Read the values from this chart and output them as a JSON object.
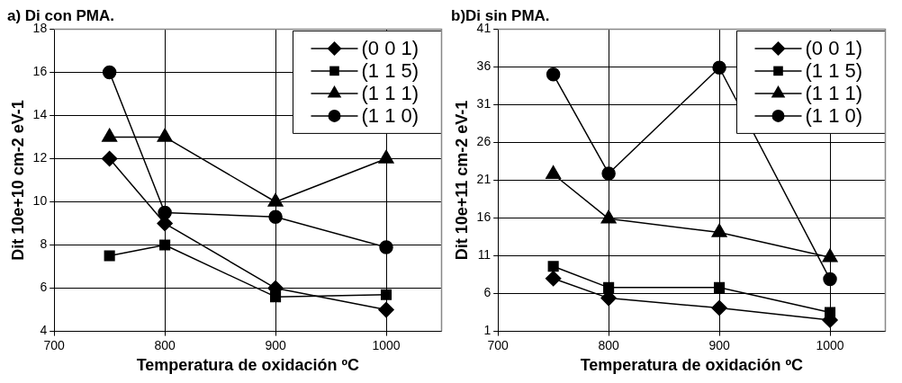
{
  "chart_data": [
    {
      "type": "line",
      "title": "a) Di con PMA.",
      "xlabel": "Temperatura de oxidación ºC",
      "ylabel": "Dit 10e+10 cm-2 eV-1",
      "x": [
        750,
        800,
        900,
        1000
      ],
      "xlim": [
        700,
        1050
      ],
      "xticks": [
        700,
        800,
        900,
        1000
      ],
      "ylim": [
        4,
        18
      ],
      "yticks": [
        4,
        6,
        8,
        10,
        12,
        14,
        16,
        18
      ],
      "grid": true,
      "legend": "top right",
      "line_style": "solid",
      "series": [
        {
          "name": "(0 0 1)",
          "color": "#000000",
          "marker": "diamond",
          "values": [
            12,
            9,
            6,
            5
          ]
        },
        {
          "name": "(1 1 5)",
          "color": "#000000",
          "marker": "square",
          "values": [
            7.5,
            8,
            5.6,
            5.7
          ]
        },
        {
          "name": "(1 1 1)",
          "color": "#000000",
          "marker": "triangle",
          "values": [
            13,
            13,
            10,
            12
          ]
        },
        {
          "name": "(1 1 0)",
          "color": "#000000",
          "marker": "circle",
          "values": [
            16,
            9.5,
            9.3,
            7.9
          ]
        }
      ]
    },
    {
      "type": "line",
      "title": "b)Di sin PMA.",
      "xlabel": "Temperatura de oxidación ºC",
      "ylabel": "Dit 10e+11 cm-2 eV-1",
      "x": [
        750,
        800,
        900,
        1000
      ],
      "xlim": [
        700,
        1050
      ],
      "xticks": [
        700,
        800,
        900,
        1000
      ],
      "ylim": [
        1,
        41
      ],
      "yticks": [
        1,
        6,
        11,
        16,
        21,
        26,
        31,
        36,
        41
      ],
      "grid": true,
      "legend": "top right",
      "line_style": "solid",
      "series": [
        {
          "name": "(0 0 1)",
          "color": "#000000",
          "marker": "diamond",
          "values": [
            8,
            5.4,
            4.1,
            2.5
          ]
        },
        {
          "name": "(1 1 5)",
          "color": "#000000",
          "marker": "square",
          "values": [
            9.6,
            6.8,
            6.8,
            3.5
          ]
        },
        {
          "name": "(1 1 1)",
          "color": "#000000",
          "marker": "triangle",
          "values": [
            21.8,
            15.9,
            14.1,
            10.8
          ]
        },
        {
          "name": "(1 1 0)",
          "color": "#000000",
          "marker": "circle",
          "values": [
            35,
            21.9,
            35.9,
            7.9
          ]
        }
      ]
    }
  ]
}
